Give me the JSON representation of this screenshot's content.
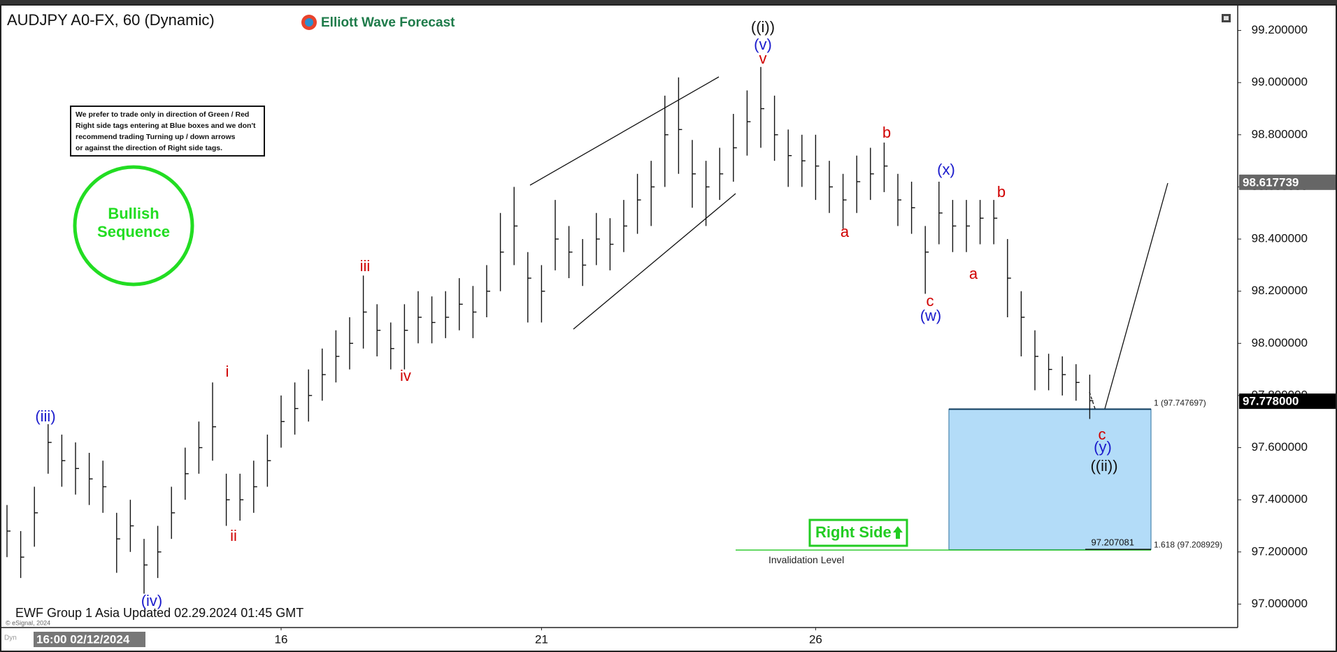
{
  "chart_data": {
    "type": "ohlc",
    "title": "AUDJPY A0-FX, 60 (Dynamic)",
    "logo": "Elliott Wave Forecast",
    "note": [
      "We prefer to trade only in direction of Green / Red",
      "Right side tags entering at Blue boxes and we don't",
      "recommend trading Turning up / down arrows",
      "or against the direction of Right side tags."
    ],
    "badge": [
      "Bullish",
      "Sequence"
    ],
    "right_side": "Right Side",
    "footer": "EWF Group 1 Asia Updated 02.29.2024 01:45 GMT",
    "copyright": "© eSignal, 2024",
    "corner": "Dyn",
    "categories": [
      "16:00 02/12/2024",
      null,
      null,
      null,
      null,
      null,
      null,
      null,
      null,
      null,
      null,
      null,
      null,
      null,
      null,
      null,
      null,
      null,
      null,
      null,
      "16",
      null,
      null,
      null,
      null,
      null,
      null,
      null,
      null,
      null,
      null,
      null,
      null,
      null,
      null,
      null,
      null,
      null,
      null,
      "21",
      null,
      null,
      null,
      null,
      null,
      null,
      null,
      null,
      null,
      null,
      null,
      null,
      null,
      null,
      null,
      null,
      null,
      null,
      null,
      "26",
      null,
      null,
      null,
      null,
      null,
      null,
      null,
      null,
      null,
      null,
      null,
      null,
      null,
      null,
      null,
      null,
      null,
      null,
      null,
      null
    ],
    "high": [
      97.38,
      97.28,
      97.45,
      97.69,
      97.65,
      97.62,
      97.58,
      97.55,
      97.35,
      97.4,
      97.25,
      97.3,
      97.45,
      97.6,
      97.7,
      97.85,
      97.5,
      97.5,
      97.55,
      97.65,
      97.8,
      97.85,
      97.9,
      97.98,
      98.05,
      98.1,
      98.26,
      98.15,
      98.08,
      98.15,
      98.2,
      98.18,
      98.2,
      98.25,
      98.22,
      98.3,
      98.5,
      98.6,
      98.35,
      98.3,
      98.55,
      98.45,
      98.4,
      98.5,
      98.48,
      98.55,
      98.65,
      98.7,
      98.95,
      99.02,
      98.78,
      98.7,
      98.75,
      98.88,
      98.97,
      99.06,
      98.95,
      98.82,
      98.8,
      98.8,
      98.7,
      98.65,
      98.72,
      98.75,
      98.77,
      98.65,
      98.62,
      98.45,
      98.62,
      98.55,
      98.55,
      98.55,
      98.55,
      98.4,
      98.2,
      98.05,
      97.96,
      97.95,
      97.92,
      97.88
    ],
    "low": [
      97.18,
      97.1,
      97.22,
      97.5,
      97.45,
      97.42,
      97.38,
      97.35,
      97.12,
      97.2,
      97.04,
      97.1,
      97.25,
      97.4,
      97.5,
      97.55,
      97.3,
      97.32,
      97.35,
      97.45,
      97.6,
      97.65,
      97.7,
      97.78,
      97.85,
      97.9,
      97.98,
      97.95,
      97.9,
      97.9,
      98.0,
      98.0,
      98.02,
      98.05,
      98.02,
      98.1,
      98.2,
      98.3,
      98.08,
      98.08,
      98.28,
      98.25,
      98.22,
      98.3,
      98.28,
      98.35,
      98.42,
      98.45,
      98.6,
      98.65,
      98.52,
      98.45,
      98.55,
      98.62,
      98.72,
      98.75,
      98.7,
      98.6,
      98.6,
      98.55,
      98.5,
      98.44,
      98.5,
      98.55,
      98.58,
      98.45,
      98.42,
      98.19,
      98.38,
      98.35,
      98.35,
      98.38,
      98.38,
      98.1,
      97.95,
      97.82,
      97.82,
      97.8,
      97.78,
      97.71
    ],
    "close": [
      97.28,
      97.18,
      97.35,
      97.62,
      97.55,
      97.52,
      97.48,
      97.45,
      97.25,
      97.3,
      97.15,
      97.2,
      97.35,
      97.5,
      97.6,
      97.68,
      97.4,
      97.4,
      97.45,
      97.55,
      97.7,
      97.75,
      97.8,
      97.88,
      97.95,
      98.0,
      98.12,
      98.05,
      97.98,
      98.05,
      98.1,
      98.08,
      98.1,
      98.15,
      98.12,
      98.2,
      98.35,
      98.45,
      98.25,
      98.2,
      98.4,
      98.35,
      98.3,
      98.4,
      98.38,
      98.45,
      98.55,
      98.6,
      98.8,
      98.82,
      98.65,
      98.6,
      98.65,
      98.75,
      98.85,
      98.9,
      98.8,
      98.72,
      98.7,
      98.68,
      98.6,
      98.55,
      98.62,
      98.65,
      98.68,
      98.55,
      98.52,
      98.35,
      98.5,
      98.45,
      98.45,
      98.48,
      98.48,
      98.25,
      98.1,
      97.95,
      97.9,
      97.88,
      97.85,
      97.78
    ],
    "bar_color": "#111111",
    "ylim": [
      96.91,
      99.29
    ],
    "yticks": [
      {
        "value": 97.0,
        "label": "97.000000"
      },
      {
        "value": 97.2,
        "label": "97.200000"
      },
      {
        "value": 97.4,
        "label": "97.400000"
      },
      {
        "value": 97.6,
        "label": "97.600000"
      },
      {
        "value": 97.8,
        "label": "97.800000"
      },
      {
        "value": 98.0,
        "label": "98.000000"
      },
      {
        "value": 98.2,
        "label": "98.200000"
      },
      {
        "value": 98.4,
        "label": "98.400000"
      },
      {
        "value": 98.6,
        "label": "98.600000"
      },
      {
        "value": 98.8,
        "label": "98.800000"
      },
      {
        "value": 99.0,
        "label": "99.000000"
      },
      {
        "value": 99.2,
        "label": "99.200000"
      }
    ],
    "price_tags": [
      98.617739,
      {
        "value": 97.778,
        "label": "97.778000"
      }
    ],
    "target_box": {
      "top": 97.747697,
      "bottom": 97.208929,
      "top_label": "1 (97.747697)",
      "bottom_label": "1.618 (97.208929)",
      "color": "#b3dcf8"
    },
    "invalidation": {
      "value": 97.207081,
      "label": "Invalidation Level",
      "color": "#33cc33"
    },
    "annotations": [
      {
        "text": "((i))",
        "color": "#111111"
      },
      {
        "text": "(v)",
        "color": "#1a1acc"
      },
      {
        "text": "v",
        "color": "#d00000"
      },
      {
        "text": "(iii)",
        "color": "#1a1acc"
      },
      {
        "text": "(iv)",
        "color": "#1a1acc"
      },
      {
        "text": "i",
        "color": "#d00000"
      },
      {
        "text": "ii",
        "color": "#d00000"
      },
      {
        "text": "iii",
        "color": "#d00000"
      },
      {
        "text": "iv",
        "color": "#d00000"
      },
      {
        "text": "a",
        "color": "#d00000"
      },
      {
        "text": "b",
        "color": "#d00000"
      },
      {
        "text": "c",
        "color": "#d00000"
      },
      {
        "text": "(w)",
        "color": "#1a1acc"
      },
      {
        "text": "(x)",
        "color": "#1a1acc"
      },
      {
        "text": "a",
        "color": "#d00000"
      },
      {
        "text": "b",
        "color": "#d00000"
      },
      {
        "text": "c",
        "color": "#d00000"
      },
      {
        "text": "(y)",
        "color": "#1a1acc"
      },
      {
        "text": "((ii))",
        "color": "#111111"
      }
    ]
  }
}
